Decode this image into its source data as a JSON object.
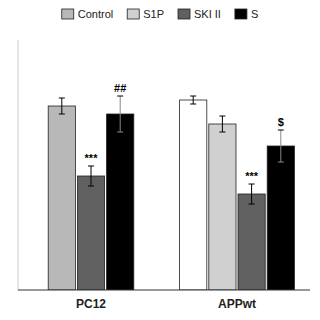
{
  "chart_data": {
    "type": "bar",
    "categories": [
      "PC12",
      "APPwt"
    ],
    "series": [
      {
        "name": "Control",
        "color": "#b8b8b8",
        "colors": [
          "#b8b8b8",
          "#ffffff"
        ],
        "values": [
          92,
          95
        ],
        "errors": [
          4,
          2
        ],
        "annotations": [
          null,
          null
        ]
      },
      {
        "name": "S1P",
        "color": "#d0d0d0",
        "values": [
          null,
          83
        ],
        "errors": [
          null,
          4
        ],
        "annotations": [
          null,
          null
        ]
      },
      {
        "name": "SKI II",
        "color": "#606060",
        "values": [
          57,
          48
        ],
        "errors": [
          5,
          5
        ],
        "annotations": [
          "***",
          "***"
        ]
      },
      {
        "name": "S",
        "color": "#000000",
        "values": [
          88,
          72
        ],
        "errors": [
          9,
          8
        ],
        "annotations": [
          "##",
          "$"
        ]
      }
    ],
    "ylim": [
      0,
      125
    ],
    "yticks": [],
    "tick_labels": "x",
    "grid": false,
    "legend": "top"
  }
}
